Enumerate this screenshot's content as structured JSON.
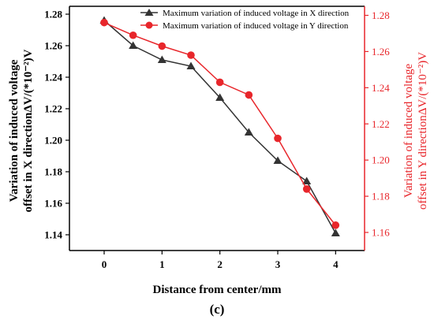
{
  "chart_data": {
    "type": "line",
    "panel_label": "(c)",
    "xlabel": "Distance from center/mm",
    "ylabel_left": "Variation of induced voltage offset in X directionΔV/(*10⁻²)V",
    "ylabel_right": "Variation of induced voltage offset in Y directionΔV/(*10⁻²)V",
    "ylabel_left_lines": [
      "Variation of induced voltage",
      "offset in X directionΔV/(*10⁻²)V"
    ],
    "ylabel_right_lines": [
      "Variation of induced voltage",
      "offset in Y directionΔV/(*10⁻²)V"
    ],
    "xlim": [
      -0.6,
      4.5
    ],
    "x_ticks": [
      "0",
      "1",
      "2",
      "3",
      "4"
    ],
    "ylim_left": [
      1.13,
      1.285
    ],
    "y_ticks_left": [
      "1.14",
      "1.16",
      "1.18",
      "1.20",
      "1.22",
      "1.24",
      "1.26",
      "1.28"
    ],
    "ylim_right": [
      1.15,
      1.285
    ],
    "y_ticks_right": [
      "1.16",
      "1.18",
      "1.20",
      "1.22",
      "1.24",
      "1.26",
      "1.28"
    ],
    "grid": false,
    "legend_position": "top-right",
    "series": [
      {
        "name": "Maximum variation of induced voltage in X direction",
        "axis": "left",
        "color": "#333333",
        "marker": "triangle",
        "x": [
          0,
          0.5,
          1,
          1.5,
          2,
          2.5,
          3,
          3.5,
          4
        ],
        "y": [
          1.276,
          1.26,
          1.251,
          1.247,
          1.227,
          1.205,
          1.187,
          1.174,
          1.141
        ]
      },
      {
        "name": "Maximum variation of induced voltage in Y direction",
        "axis": "right",
        "color": "#e8262b",
        "marker": "circle",
        "x": [
          0,
          0.5,
          1,
          1.5,
          2,
          2.5,
          3,
          3.5,
          4
        ],
        "y": [
          1.276,
          1.269,
          1.263,
          1.258,
          1.243,
          1.236,
          1.212,
          1.184,
          1.164
        ]
      }
    ]
  }
}
